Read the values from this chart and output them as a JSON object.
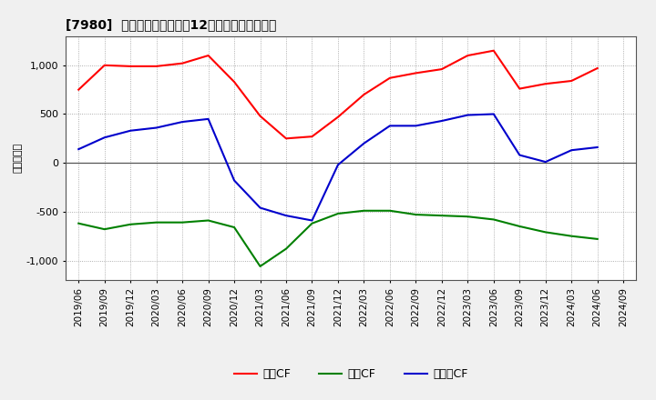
{
  "title": "[7980]  キャッシュフローの12か月移動合計の推移",
  "ylabel": "（百万円）",
  "background_color": "#f0f0f0",
  "plot_background": "#ffffff",
  "grid_color": "#999999",
  "ylim": [
    -1200,
    1300
  ],
  "yticks": [
    -1000,
    -500,
    0,
    500,
    1000
  ],
  "x_labels": [
    "2019/06",
    "2019/09",
    "2019/12",
    "2020/03",
    "2020/06",
    "2020/09",
    "2020/12",
    "2021/03",
    "2021/06",
    "2021/09",
    "2021/12",
    "2022/03",
    "2022/06",
    "2022/09",
    "2022/12",
    "2023/03",
    "2023/06",
    "2023/09",
    "2023/12",
    "2024/03",
    "2024/06",
    "2024/09"
  ],
  "series": {
    "営業CF": {
      "color": "#ff0000",
      "values": [
        750,
        1000,
        990,
        990,
        1020,
        1100,
        830,
        480,
        250,
        270,
        470,
        700,
        870,
        920,
        960,
        1100,
        1150,
        760,
        810,
        840,
        970,
        null
      ]
    },
    "投資CF": {
      "color": "#008000",
      "values": [
        -620,
        -680,
        -630,
        -610,
        -610,
        -590,
        -660,
        -1060,
        -880,
        -620,
        -520,
        -490,
        -490,
        -530,
        -540,
        -550,
        -580,
        -650,
        -710,
        -750,
        -780,
        null
      ]
    },
    "フリーCF": {
      "color": "#0000cc",
      "values": [
        140,
        260,
        330,
        360,
        420,
        450,
        -180,
        -460,
        -540,
        -590,
        -20,
        200,
        380,
        380,
        430,
        490,
        500,
        80,
        10,
        130,
        160,
        null
      ]
    }
  },
  "legend_labels": [
    "営業CF",
    "投資CF",
    "フリーCF"
  ],
  "line_width": 1.5
}
